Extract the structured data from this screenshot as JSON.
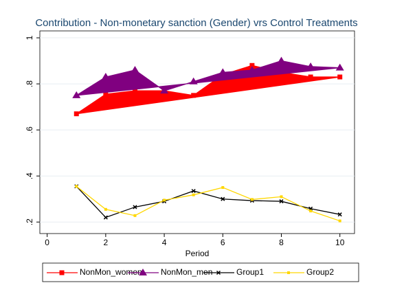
{
  "chart_data": {
    "type": "line",
    "title": "Contribution - Non-monetary sanction (Gender) vrs Control Treatments",
    "x_label": "Period",
    "x": [
      1,
      2,
      3,
      4,
      5,
      6,
      7,
      8,
      9,
      10
    ],
    "series": [
      {
        "name": "NonMon_women",
        "color": "#ff0000",
        "marker": "square",
        "filled": true,
        "values": [
          0.67,
          0.755,
          0.77,
          0.77,
          0.75,
          0.84,
          0.88,
          0.85,
          0.83,
          0.83
        ]
      },
      {
        "name": "NonMon_men",
        "color": "#800080",
        "marker": "triangle",
        "filled": true,
        "values": [
          0.75,
          0.83,
          0.86,
          0.77,
          0.81,
          0.85,
          0.86,
          0.9,
          0.875,
          0.87
        ]
      },
      {
        "name": "Group1",
        "color": "#000000",
        "marker": "cross",
        "filled": false,
        "values": [
          0.355,
          0.22,
          0.265,
          0.29,
          0.335,
          0.3,
          0.293,
          0.29,
          0.258,
          0.233
        ]
      },
      {
        "name": "Group2",
        "color": "#ffd700",
        "marker": "square",
        "filled": false,
        "values": [
          0.355,
          0.255,
          0.228,
          0.295,
          0.318,
          0.35,
          0.298,
          0.31,
          0.248,
          0.205
        ]
      }
    ],
    "xlim": [
      -0.25,
      10.5
    ],
    "xticks": [
      0,
      2,
      4,
      6,
      8,
      10
    ],
    "ylim": [
      0.15,
      1.03
    ],
    "yticks": [
      {
        "value": 0.2,
        "label": ".2"
      },
      {
        "value": 0.4,
        "label": ".4"
      },
      {
        "value": 0.6,
        "label": ".6"
      },
      {
        "value": 0.8,
        "label": ".8"
      },
      1
    ],
    "grid": true,
    "legend": "bottom"
  }
}
